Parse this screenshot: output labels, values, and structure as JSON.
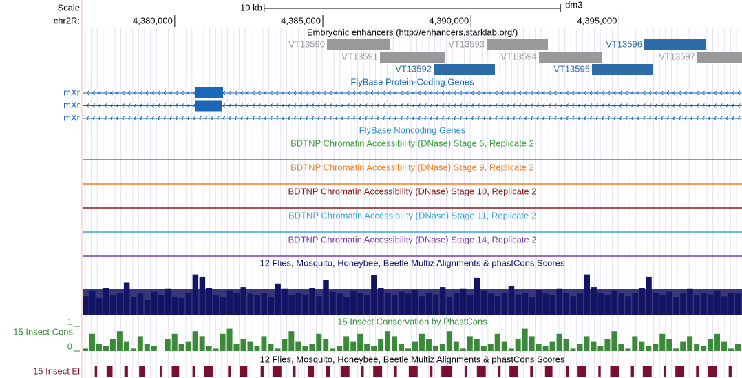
{
  "scale": {
    "label": "Scale",
    "bar_label": "10 kb",
    "bar_length": 10000,
    "assembly": "dm3"
  },
  "view": {
    "chrom_label": "chr2R:",
    "start": 4376890,
    "end": 4399150,
    "ticks": [
      {
        "value": 4380000,
        "label": "4,380,000"
      },
      {
        "value": 4385000,
        "label": "4,385,000"
      },
      {
        "value": 4390000,
        "label": "4,390,000"
      },
      {
        "value": 4395000,
        "label": "4,395,000"
      }
    ]
  },
  "enhancers": {
    "title": "Embryonic enhancers (http://enhancers.starklab.org/)",
    "items": [
      {
        "name": "VT13590",
        "start": 4385139,
        "end": 4387253,
        "color": "#999999"
      },
      {
        "name": "VT13591",
        "start": 4386928,
        "end": 4389112,
        "color": "#999999"
      },
      {
        "name": "VT13592",
        "start": 4388740,
        "end": 4390808,
        "color": "#2e6ca8"
      },
      {
        "name": "VT13593",
        "start": 4390529,
        "end": 4392597,
        "color": "#999999"
      },
      {
        "name": "VT13594",
        "start": 4392295,
        "end": 4394433,
        "color": "#999999"
      },
      {
        "name": "VT13595",
        "start": 4394084,
        "end": 4396152,
        "color": "#2e6ca8"
      },
      {
        "name": "VT13596",
        "start": 4395850,
        "end": 4397941,
        "color": "#2e6ca8"
      },
      {
        "name": "VT13597",
        "start": 4397639,
        "end": 4399150,
        "color": "#999999"
      }
    ]
  },
  "genes": {
    "title": "FlyBase Protein-Coding Genes",
    "color": "#1a66b8",
    "transcripts": [
      {
        "name": "mXr",
        "start": 4376890,
        "end": 4399150,
        "exons": [
          [
            4380701,
            4381630
          ]
        ]
      },
      {
        "name": "mXr",
        "start": 4376890,
        "end": 4399150,
        "exons": [
          [
            4380678,
            4381584
          ]
        ]
      },
      {
        "name": "mXr",
        "start": 4376890,
        "end": 4399150,
        "exons": []
      }
    ]
  },
  "noncoding": {
    "title": "FlyBase Noncoding Genes",
    "color": "#2a8fd0"
  },
  "dnase": [
    {
      "title": "BDTNP Chromatin Accessibility (DNase) Stage 5, Replicate 2",
      "color": "#3a9e3a"
    },
    {
      "title": "BDTNP Chromatin Accessibility (DNase) Stage 9, Replicate 2",
      "color": "#f07f20"
    },
    {
      "title": "BDTNP Chromatin Accessibility (DNase) Stage 10, Replicate 2",
      "color": "#8b1a1a"
    },
    {
      "title": "BDTNP Chromatin Accessibility (DNase) Stage 11, Replicate 2",
      "color": "#3aa6d8"
    },
    {
      "title": "BDTNP Chromatin Accessibility (DNase) Stage 14, Replicate 2",
      "color": "#7b3fa0"
    }
  ],
  "multiz": {
    "title": "12 Flies, Mosquito, Honeybee, Beetle Multiz Alignments & phastCons Scores",
    "color": "#141464",
    "values": [
      0.42,
      0.55,
      0.38,
      0.6,
      0.45,
      0.5,
      0.72,
      0.4,
      0.48,
      0.35,
      0.52,
      0.44,
      0.58,
      0.4,
      0.38,
      0.5,
      0.9,
      0.85,
      0.6,
      0.45,
      0.4,
      0.55,
      0.5,
      0.62,
      0.48,
      0.44,
      0.5,
      0.4,
      0.7,
      0.58,
      0.45,
      0.5,
      0.46,
      0.6,
      0.42,
      0.78,
      0.52,
      0.48,
      0.4,
      0.55,
      0.5,
      0.45,
      0.88,
      0.6,
      0.5,
      0.44,
      0.52,
      0.48,
      0.56,
      0.42,
      0.5,
      0.46,
      0.62,
      0.4,
      0.5,
      0.58,
      0.45,
      0.82,
      0.55,
      0.48,
      0.42,
      0.5,
      0.65,
      0.46,
      0.5,
      0.4,
      0.56,
      0.48,
      0.44,
      0.58,
      0.5,
      0.42,
      0.48,
      0.9,
      0.62,
      0.5,
      0.45,
      0.55,
      0.48,
      0.42,
      0.5,
      0.6,
      0.85,
      0.5,
      0.45,
      0.52,
      0.4,
      0.48,
      0.58,
      0.44,
      0.5,
      0.46,
      0.55,
      0.42,
      0.5,
      0.48
    ]
  },
  "phastcons": {
    "title": "15 Insect Conservation by PhastCons",
    "label": "15 Insect Cons",
    "color": "#3a8a3a",
    "ylim": [
      0,
      1
    ],
    "yticks": [
      0,
      1
    ],
    "values": [
      0.1,
      0.7,
      0.3,
      0.2,
      0.5,
      0.8,
      0.4,
      0.1,
      0.6,
      0.3,
      0.2,
      0.0,
      0.5,
      0.7,
      0.3,
      0.4,
      0.8,
      0.6,
      0.2,
      0.1,
      0.7,
      0.9,
      0.3,
      0.5,
      0.4,
      0.2,
      0.6,
      0.3,
      0.1,
      0.5,
      0.8,
      0.4,
      0.2,
      0.3,
      0.7,
      0.5,
      0.1,
      0.2,
      0.6,
      0.4,
      0.7,
      0.3,
      0.2,
      0.5,
      0.8,
      0.6,
      0.3,
      0.1,
      0.4,
      0.7,
      0.5,
      0.2,
      0.3,
      0.8,
      0.4,
      0.1,
      0.6,
      0.5,
      0.2,
      0.3,
      0.7,
      0.4,
      0.1,
      0.5,
      0.9,
      0.6,
      0.3,
      0.2,
      0.4,
      0.7,
      0.5,
      0.1,
      0.3,
      0.6,
      0.4,
      0.2,
      0.5,
      0.8,
      0.3,
      0.1,
      0.6,
      0.4,
      0.2,
      0.3,
      0.7,
      0.5,
      0.1,
      0.4,
      0.6,
      0.3,
      0.2,
      0.5,
      0.7,
      0.4,
      0.1,
      0.3
    ]
  },
  "elements": {
    "title": "12 Flies, Mosquito, Honeybee, Beetle Multiz Alignments & phastCons Scores",
    "label": "15 Insect El",
    "color": "#7a1030",
    "items": [
      [
        4377300,
        4377380
      ],
      [
        4377700,
        4377900
      ],
      [
        4378300,
        4378420
      ],
      [
        4378800,
        4379000
      ],
      [
        4379500,
        4379560
      ],
      [
        4379900,
        4380150
      ],
      [
        4380600,
        4380700
      ],
      [
        4381000,
        4381300
      ],
      [
        4381800,
        4381900
      ],
      [
        4382200,
        4382450
      ],
      [
        4382900,
        4383000
      ],
      [
        4383300,
        4383600
      ],
      [
        4384000,
        4384080
      ],
      [
        4384500,
        4384700
      ],
      [
        4385100,
        4385250
      ],
      [
        4385600,
        4385900
      ],
      [
        4386300,
        4386380
      ],
      [
        4386700,
        4387000
      ],
      [
        4387400,
        4387500
      ],
      [
        4387900,
        4388200
      ],
      [
        4388600,
        4388700
      ],
      [
        4389000,
        4389350
      ],
      [
        4389800,
        4389880
      ],
      [
        4390200,
        4390500
      ],
      [
        4390900,
        4391000
      ],
      [
        4391300,
        4391600
      ],
      [
        4392000,
        4392100
      ],
      [
        4392500,
        4392750
      ],
      [
        4393200,
        4393300
      ],
      [
        4393600,
        4393900
      ],
      [
        4394300,
        4394380
      ],
      [
        4394700,
        4395000
      ],
      [
        4395400,
        4395500
      ],
      [
        4395800,
        4396100
      ],
      [
        4396500,
        4396580
      ],
      [
        4396900,
        4397200
      ],
      [
        4397600,
        4397700
      ],
      [
        4398000,
        4398300
      ],
      [
        4398700,
        4398800
      ]
    ]
  }
}
